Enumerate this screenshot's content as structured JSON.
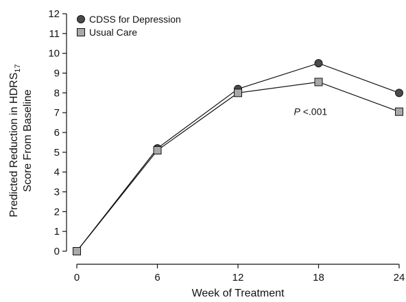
{
  "chart_data": {
    "type": "line",
    "x": [
      0,
      6,
      12,
      18,
      24
    ],
    "xlim": [
      0,
      24
    ],
    "ylim": [
      0,
      12
    ],
    "xticks": [
      0,
      6,
      12,
      18,
      24
    ],
    "yticks": [
      0,
      1,
      2,
      3,
      4,
      5,
      6,
      7,
      8,
      9,
      10,
      11,
      12
    ],
    "xlabel": "Week of Treatment",
    "ylabel": {
      "line1_prefix": "Predicted Reduction in HDRS",
      "line1_subscript": "17",
      "line2": "Score From Baseline"
    },
    "grid": false,
    "legend_position": "top-left",
    "series": [
      {
        "name": "CDSS for Depression",
        "marker": "circle",
        "color": "#4a4a4a",
        "values": [
          0,
          5.2,
          8.2,
          9.5,
          8.0
        ]
      },
      {
        "name": "Usual Care",
        "marker": "square",
        "color": "#a8a8a8",
        "values": [
          0,
          5.1,
          8.0,
          8.55,
          7.05
        ]
      }
    ],
    "annotation": {
      "italic": "P",
      "rest": " <.001",
      "x": 18,
      "y": 7.1
    }
  }
}
